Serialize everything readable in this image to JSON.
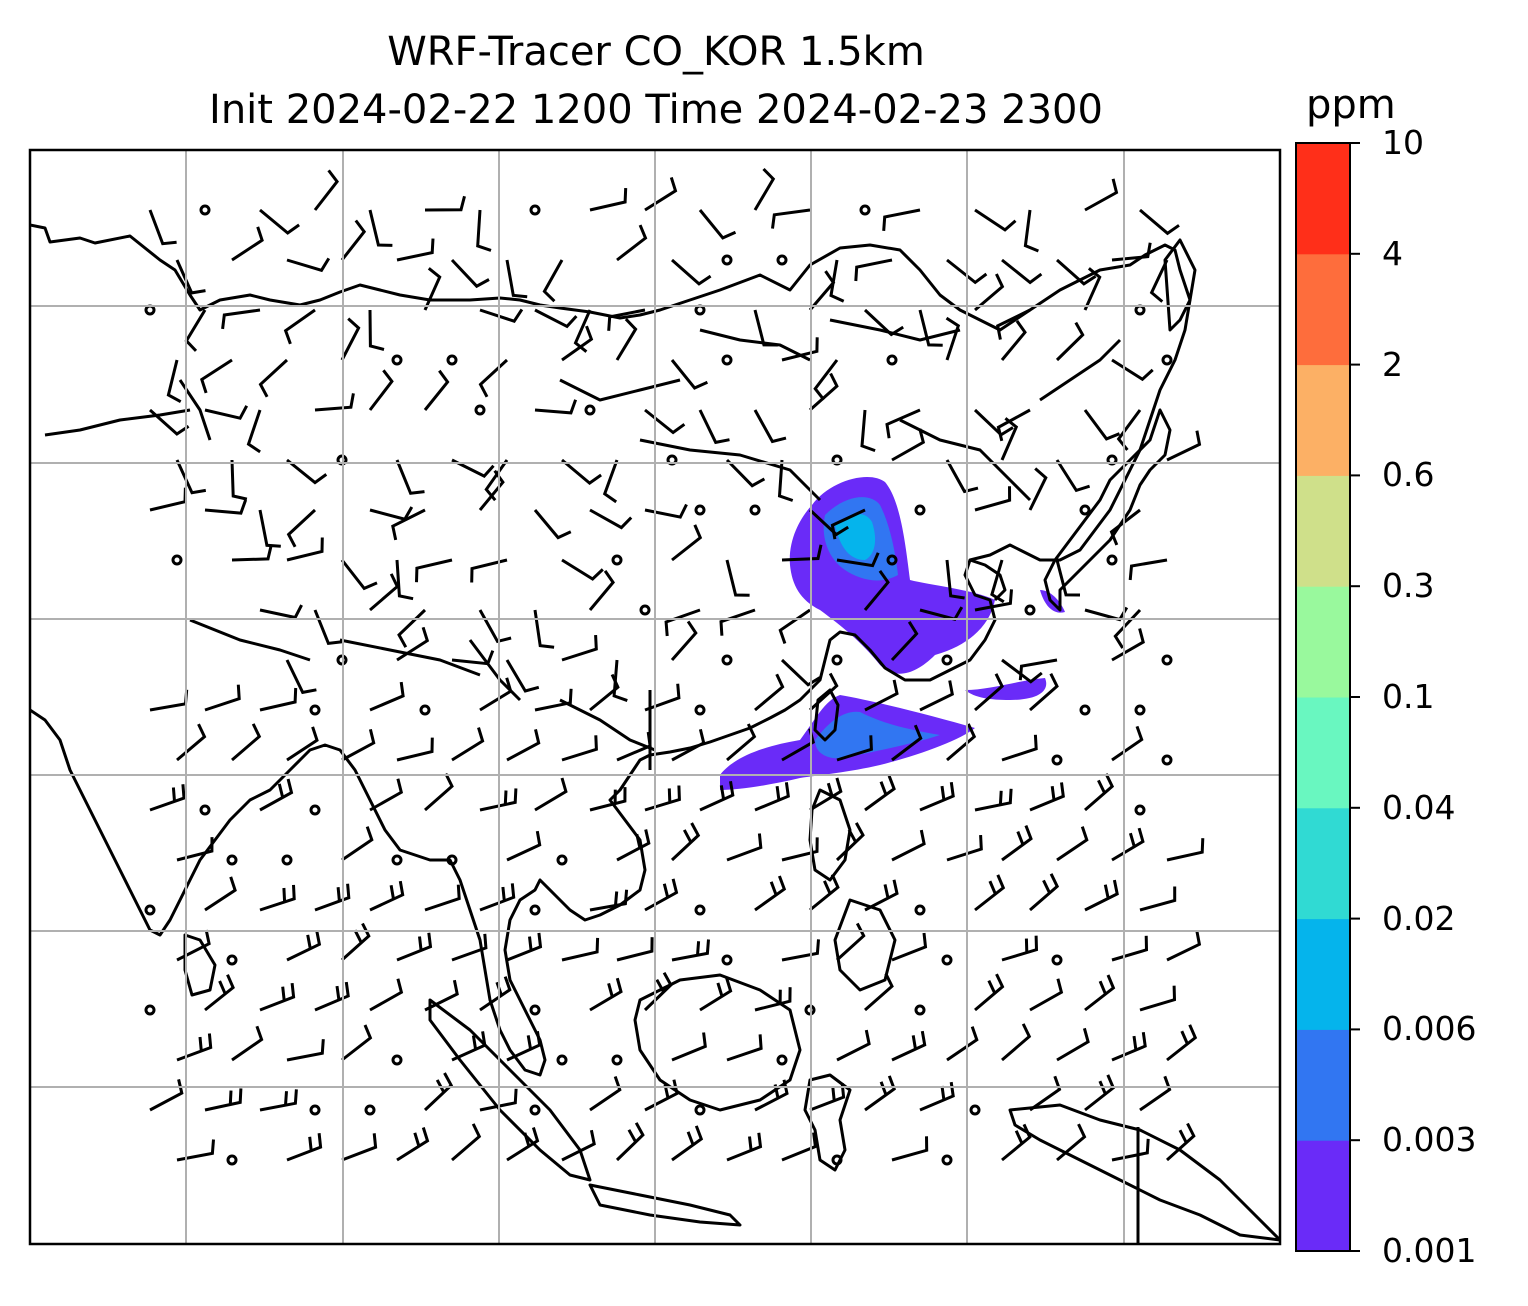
{
  "title_line1": "WRF-Tracer CO_KOR 1.5km",
  "title_line2": "Init 2024-02-22 1200 Time 2024-02-23 2300",
  "colorbar": {
    "unit": "ppm",
    "levels": [
      "0.001",
      "0.003",
      "0.006",
      "0.02",
      "0.04",
      "0.1",
      "0.3",
      "0.6",
      "2",
      "4",
      "10"
    ],
    "colors": [
      "#6a2bf8",
      "#3176f2",
      "#05b4ec",
      "#30dad3",
      "#69f7c0",
      "#99f99d",
      "#cfe08a",
      "#fcb065",
      "#fe6d3c",
      "#ff2f19"
    ]
  },
  "map": {
    "gridlines": true,
    "coastlines": true,
    "overlay": "wind barbs"
  }
}
